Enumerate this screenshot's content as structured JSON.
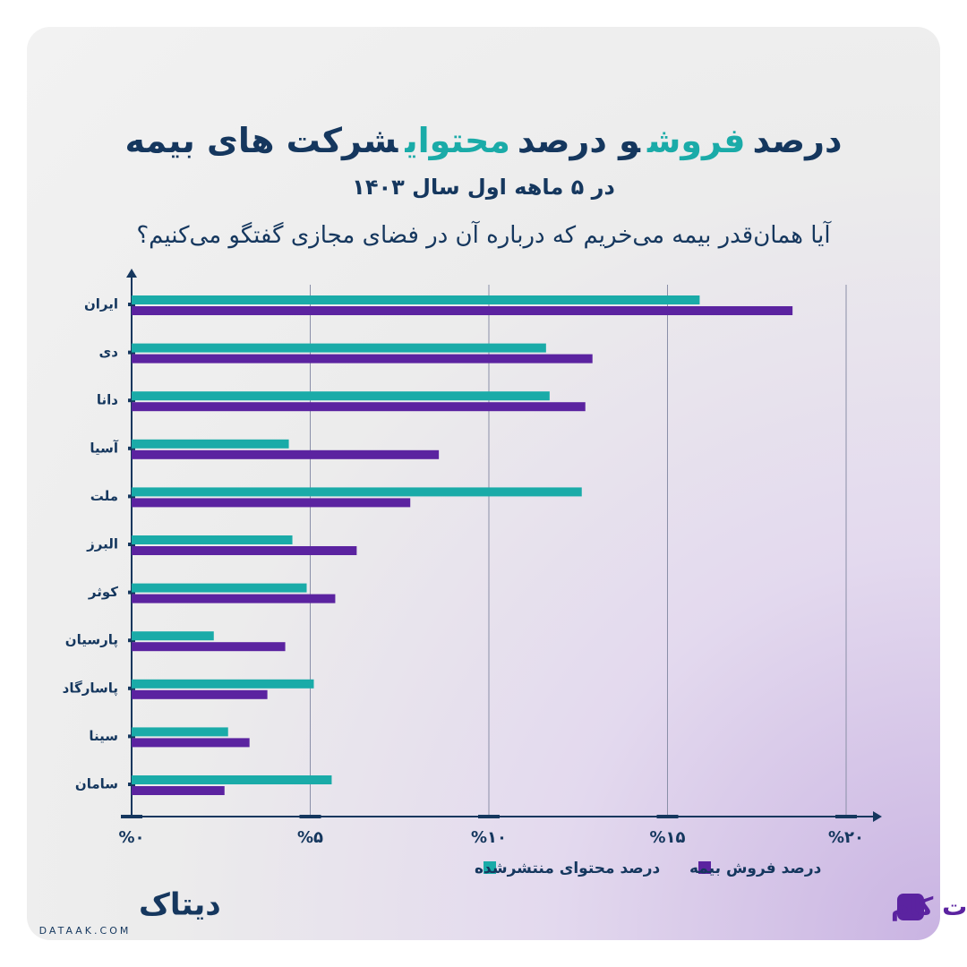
{
  "title": [
    {
      "text": "درصد",
      "color": "#15375e"
    },
    {
      "text": "فروش",
      "color": "#1aaba8"
    },
    {
      "text": "و درصد",
      "color": "#15375e"
    },
    {
      "text": "محتوای",
      "color": "#1aaba8"
    },
    {
      "text": "شرکت های بیمه",
      "color": "#15375e"
    }
  ],
  "subtitle": "در ۵ ماهه اول سال ۱۴۰۳",
  "question": "آیا همان‌قدر بیمه می‌خریم که درباره آن در فضای مجازی گفتگو می‌کنیم؟",
  "chart_data": {
    "type": "bar",
    "orientation": "horizontal",
    "categories": [
      "ایران",
      "دی",
      "دانا",
      "آسیا",
      "ملت",
      "البرز",
      "کوثر",
      "پارسیان",
      "پاسارگاد",
      "سینا",
      "سامان"
    ],
    "series": [
      {
        "name": "درصد محتوای منتشرشده",
        "color": "#1aaba8",
        "values": [
          15.9,
          11.6,
          11.7,
          4.4,
          12.6,
          4.5,
          4.9,
          2.3,
          5.1,
          2.7,
          5.6
        ]
      },
      {
        "name": "درصد فروش بیمه",
        "color": "#5b23a0",
        "values": [
          18.5,
          12.9,
          12.7,
          8.6,
          7.8,
          6.3,
          5.7,
          4.3,
          3.8,
          3.3,
          2.6
        ]
      }
    ],
    "xlim": [
      0,
      20
    ],
    "xticks": [
      {
        "value": 0,
        "label": "%۰"
      },
      {
        "value": 5,
        "label": "%۵"
      },
      {
        "value": 10,
        "label": "%۱۰"
      },
      {
        "value": 15,
        "label": "%۱۵"
      },
      {
        "value": 20,
        "label": "%۲۰"
      }
    ],
    "grid": true
  },
  "logos": {
    "left_fa": "دیتاک",
    "left_en": "DATAAK.COM",
    "right": "بیمه دات کام"
  }
}
